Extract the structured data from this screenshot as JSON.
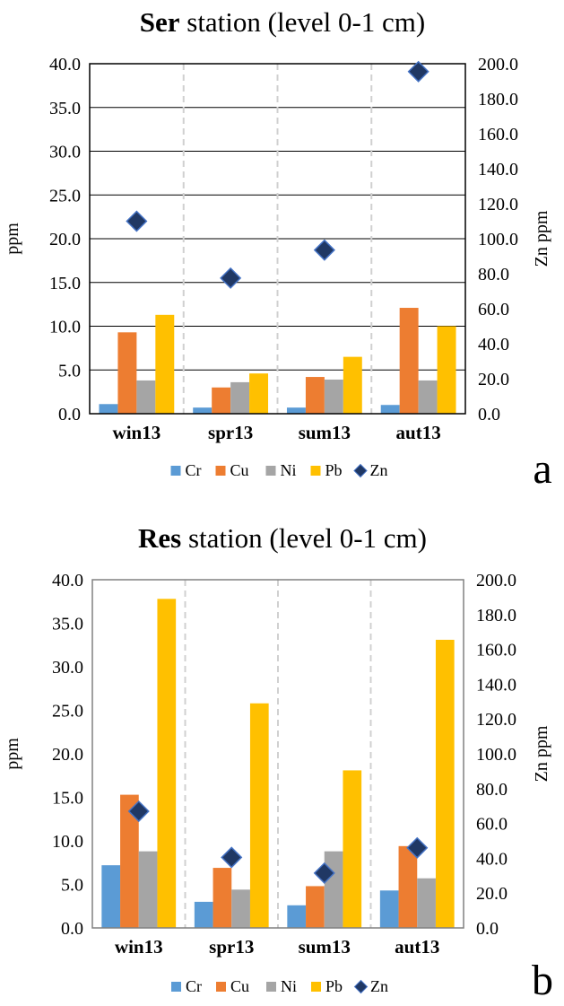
{
  "chart_data": [
    {
      "type": "bar",
      "title": "station (level 0-1 cm)",
      "title_bold": "Ser",
      "panel_label": "a",
      "categories": [
        "win13",
        "spr13",
        "sum13",
        "aut13"
      ],
      "ylabel": "ppm",
      "y2label": "Zn ppm",
      "ylim": [
        0,
        40
      ],
      "y2lim": [
        0,
        200
      ],
      "yticks": [
        "0.0",
        "5.0",
        "10.0",
        "15.0",
        "20.0",
        "25.0",
        "30.0",
        "35.0",
        "40.0"
      ],
      "y2ticks": [
        "0.0",
        "20.0",
        "40.0",
        "60.0",
        "80.0",
        "100.0",
        "120.0",
        "140.0",
        "160.0",
        "180.0",
        "200.0"
      ],
      "grid": true,
      "legend_position": "bottom",
      "series": [
        {
          "name": "Cr",
          "type": "bar",
          "axis": "left",
          "values": [
            1.1,
            0.7,
            0.7,
            1.0
          ]
        },
        {
          "name": "Cu",
          "type": "bar",
          "axis": "left",
          "values": [
            9.3,
            3.0,
            4.2,
            12.1
          ]
        },
        {
          "name": "Ni",
          "type": "bar",
          "axis": "left",
          "values": [
            3.8,
            3.6,
            3.9,
            3.8
          ]
        },
        {
          "name": "Pb",
          "type": "bar",
          "axis": "left",
          "values": [
            11.3,
            4.6,
            6.5,
            10.0
          ]
        },
        {
          "name": "Zn",
          "type": "scatter",
          "axis": "right",
          "values": [
            110.0,
            77.5,
            93.5,
            195.5
          ]
        }
      ]
    },
    {
      "type": "bar",
      "title": "station (level 0-1 cm)",
      "title_bold": "Res",
      "panel_label": "b",
      "categories": [
        "win13",
        "spr13",
        "sum13",
        "aut13"
      ],
      "ylabel": "ppm",
      "y2label": "Zn ppm",
      "ylim": [
        0,
        40
      ],
      "y2lim": [
        0,
        200
      ],
      "yticks": [
        "0.0",
        "5.0",
        "10.0",
        "15.0",
        "20.0",
        "25.0",
        "30.0",
        "35.0",
        "40.0"
      ],
      "y2ticks": [
        "0.0",
        "20.0",
        "40.0",
        "60.0",
        "80.0",
        "100.0",
        "120.0",
        "140.0",
        "160.0",
        "180.0",
        "200.0"
      ],
      "grid": false,
      "legend_position": "bottom",
      "series": [
        {
          "name": "Cr",
          "type": "bar",
          "axis": "left",
          "values": [
            7.2,
            3.0,
            2.6,
            4.3
          ]
        },
        {
          "name": "Cu",
          "type": "bar",
          "axis": "left",
          "values": [
            15.3,
            6.9,
            4.8,
            9.4
          ]
        },
        {
          "name": "Ni",
          "type": "bar",
          "axis": "left",
          "values": [
            8.8,
            4.4,
            8.8,
            5.7
          ]
        },
        {
          "name": "Pb",
          "type": "bar",
          "axis": "left",
          "values": [
            37.8,
            25.8,
            18.1,
            33.1
          ]
        },
        {
          "name": "Zn",
          "type": "scatter",
          "axis": "right",
          "values": [
            67.0,
            40.5,
            31.5,
            46.0
          ]
        }
      ]
    }
  ],
  "colors": {
    "Cr": "#5B9BD5",
    "Cu": "#ED7D31",
    "Ni": "#A5A5A5",
    "Pb": "#FFC000",
    "Zn": "#203864",
    "Zn_edge": "#4472C4",
    "grid": "#000000",
    "category_divider": "#D0D0D0",
    "frame_a": "#000000",
    "frame_b": "#808080"
  }
}
